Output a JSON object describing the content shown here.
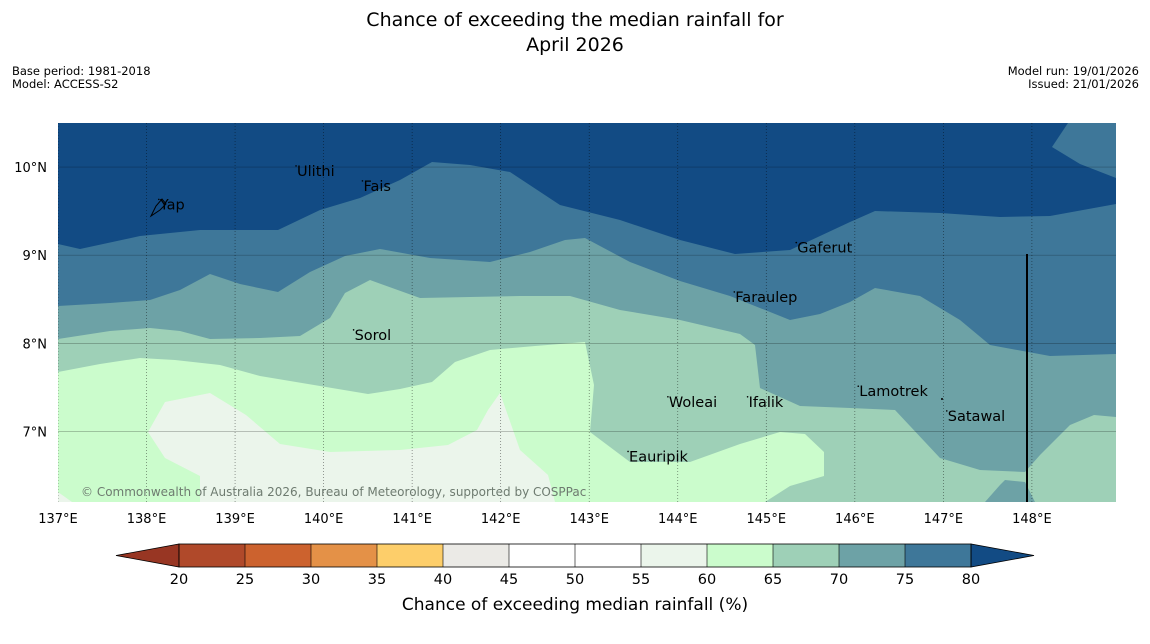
{
  "title_line1": "Chance of exceeding the median rainfall for",
  "title_line2": "April 2026",
  "meta_left": {
    "base_period": "Base period: 1981-2018",
    "model": "Model: ACCESS-S2"
  },
  "meta_right": {
    "model_run": "Model run: 19/01/2026",
    "issued": "Issued: 21/01/2026"
  },
  "copyright": "© Commonwealth of Australia 2026, Bureau of Meteorology, supported by COSPPac",
  "map": {
    "lon_range": [
      137.0,
      148.95
    ],
    "lat_range": [
      6.2,
      10.5
    ],
    "lon_ticks": [
      {
        "value": 137,
        "label": "137°E"
      },
      {
        "value": 138,
        "label": "138°E"
      },
      {
        "value": 139,
        "label": "139°E"
      },
      {
        "value": 140,
        "label": "140°E"
      },
      {
        "value": 141,
        "label": "141°E"
      },
      {
        "value": 142,
        "label": "142°E"
      },
      {
        "value": 143,
        "label": "143°E"
      },
      {
        "value": 144,
        "label": "144°E"
      },
      {
        "value": 145,
        "label": "145°E"
      },
      {
        "value": 146,
        "label": "146°E"
      },
      {
        "value": 147,
        "label": "147°E"
      },
      {
        "value": 148,
        "label": "148°E"
      }
    ],
    "lat_ticks": [
      {
        "value": 10,
        "label": "10°N"
      },
      {
        "value": 9,
        "label": "9°N"
      },
      {
        "value": 8,
        "label": "8°N"
      },
      {
        "value": 7,
        "label": "7°N"
      }
    ],
    "places": [
      {
        "name": "Ulithi",
        "lon": 139.7,
        "lat": 9.9
      },
      {
        "name": "Fais",
        "lon": 140.45,
        "lat": 9.73
      },
      {
        "name": "Yap",
        "lon": 138.15,
        "lat": 9.52
      },
      {
        "name": "Gaferut",
        "lon": 145.35,
        "lat": 9.03
      },
      {
        "name": "Faraulep",
        "lon": 144.65,
        "lat": 8.47
      },
      {
        "name": "Sorol",
        "lon": 140.35,
        "lat": 8.04
      },
      {
        "name": "Lamotrek",
        "lon": 146.05,
        "lat": 7.4
      },
      {
        "name": "Woleai",
        "lon": 143.9,
        "lat": 7.28
      },
      {
        "name": "Ifalik",
        "lon": 144.8,
        "lat": 7.28
      },
      {
        "name": "Satawal",
        "lon": 147.05,
        "lat": 7.12
      },
      {
        "name": "Eauripik",
        "lon": 143.45,
        "lat": 6.66
      }
    ]
  },
  "colorbar": {
    "title": "Chance of exceeding median rainfall (%)",
    "ticks": [
      "20",
      "25",
      "30",
      "35",
      "40",
      "45",
      "50",
      "55",
      "60",
      "65",
      "70",
      "75",
      "80"
    ],
    "colors": [
      "#b0492a",
      "#cc622e",
      "#e49147",
      "#fdce6a",
      "#ebeae6",
      "#ffffff",
      "#ffffff",
      "#ebf5eb",
      "#cbfccc",
      "#9ed0b7",
      "#6da2a6",
      "#3e7799"
    ],
    "under_color": "#983623",
    "over_color": "#124b84"
  },
  "colors": {
    "c80": "#124b84",
    "c75": "#3e7799",
    "c70": "#6da2a6",
    "c65": "#9ed0b7",
    "c60": "#cbfccc",
    "c55": "#ebf5eb"
  }
}
